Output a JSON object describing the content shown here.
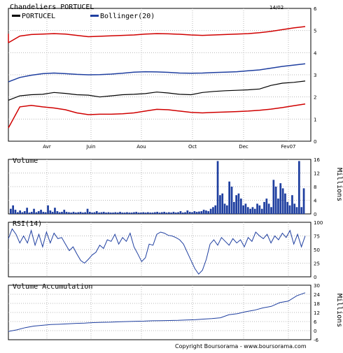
{
  "colors": {
    "price": "#000000",
    "bollinger_mid": "#1f3fa0",
    "bollinger_band": "#d00000",
    "volume": "#1f3fa0",
    "rsi": "#1f3fa0",
    "accum": "#1f3fa0",
    "grid": "#b8b8b8"
  },
  "chart_data": [
    {
      "type": "line",
      "title": "Chandeliers  PORTUCEL",
      "date_label": "14/02",
      "legend": [
        "PORTUCEL",
        "Bollinger(20)"
      ],
      "x_ticks": [
        "Avr",
        "Juin",
        "Aou",
        "Oct",
        "Dec",
        "Fev07"
      ],
      "ylim": [
        0,
        6
      ],
      "y_ticks": [
        "0",
        "1",
        "2",
        "3",
        "4",
        "5",
        "6"
      ],
      "series": [
        {
          "name": "PORTUCEL",
          "values": [
            1.85,
            2.05,
            2.1,
            2.12,
            2.2,
            2.16,
            2.1,
            2.08,
            2.0,
            2.05,
            2.1,
            2.12,
            2.15,
            2.22,
            2.18,
            2.12,
            2.1,
            2.2,
            2.25,
            2.28,
            2.3,
            2.32,
            2.36,
            2.52,
            2.62,
            2.66,
            2.72
          ]
        },
        {
          "name": "Bollinger(20)",
          "values": [
            2.68,
            2.88,
            2.98,
            3.05,
            3.08,
            3.05,
            3.02,
            3.0,
            3.01,
            3.03,
            3.07,
            3.12,
            3.14,
            3.13,
            3.11,
            3.08,
            3.07,
            3.08,
            3.1,
            3.12,
            3.14,
            3.18,
            3.22,
            3.3,
            3.38,
            3.44,
            3.5
          ]
        },
        {
          "values": [
            4.45,
            4.75,
            4.82,
            4.84,
            4.86,
            4.84,
            4.78,
            4.72,
            4.74,
            4.76,
            4.78,
            4.8,
            4.84,
            4.86,
            4.85,
            4.83,
            4.8,
            4.78,
            4.8,
            4.82,
            4.84,
            4.86,
            4.9,
            4.96,
            5.04,
            5.12,
            5.18
          ]
        },
        {
          "values": [
            0.6,
            1.55,
            1.62,
            1.55,
            1.5,
            1.42,
            1.28,
            1.2,
            1.22,
            1.22,
            1.24,
            1.28,
            1.36,
            1.44,
            1.42,
            1.36,
            1.3,
            1.28,
            1.3,
            1.32,
            1.34,
            1.36,
            1.4,
            1.45,
            1.52,
            1.6,
            1.68
          ]
        }
      ]
    },
    {
      "type": "bar",
      "title": "Volume",
      "ylabel": "Millions",
      "ylim": [
        0,
        16
      ],
      "y_ticks": [
        "0",
        "4",
        "8",
        "12",
        "16"
      ],
      "values": [
        1.5,
        2.5,
        1.2,
        0.5,
        1,
        0.5,
        0.8,
        1.8,
        0.4,
        0.6,
        1.5,
        0.5,
        0.8,
        1.2,
        0.6,
        0.5,
        2.5,
        1,
        0.6,
        1.8,
        0.8,
        0.5,
        0.6,
        1.2,
        0.6,
        0.5,
        0.4,
        0.6,
        0.4,
        0.5,
        0.6,
        0.4,
        0.5,
        1.5,
        0.6,
        0.4,
        0.5,
        0.8,
        0.4,
        0.5,
        0.6,
        0.4,
        0.5,
        0.4,
        0.4,
        0.5,
        0.4,
        0.6,
        0.4,
        0.4,
        0.5,
        0.4,
        0.4,
        0.5,
        0.6,
        0.4,
        0.4,
        0.5,
        0.4,
        0.5,
        0.4,
        0.4,
        0.5,
        0.6,
        0.4,
        0.5,
        0.6,
        0.4,
        0.5,
        0.4,
        0.6,
        0.4,
        0.5,
        0.8,
        0.4,
        0.5,
        1.0,
        0.6,
        0.5,
        0.8,
        0.6,
        0.7,
        0.8,
        1.2,
        1.0,
        0.8,
        1.5,
        2.0,
        2.5,
        15.5,
        5.5,
        6.0,
        3.0,
        2.5,
        9.5,
        8.0,
        3.5,
        5.5,
        6.0,
        4.5,
        2.5,
        3.0,
        2.0,
        1.5,
        2.0,
        1.5,
        3.0,
        2.5,
        1.5,
        3.5,
        4.5,
        3.0,
        2.0,
        10.0,
        8.0,
        4.5,
        9.0,
        7.5,
        6.0,
        3.5,
        2.5,
        5.5,
        3.0,
        2.0,
        15.5,
        2.0,
        7.5
      ]
    },
    {
      "type": "line",
      "title": "RSI(14)",
      "ylim": [
        0,
        100
      ],
      "y_ticks": [
        "0",
        "25",
        "50",
        "75",
        "100"
      ],
      "values": [
        70,
        88,
        78,
        62,
        75,
        62,
        85,
        58,
        78,
        55,
        82,
        62,
        80,
        70,
        72,
        60,
        48,
        55,
        42,
        30,
        25,
        32,
        40,
        45,
        58,
        52,
        68,
        65,
        78,
        60,
        72,
        65,
        80,
        55,
        42,
        28,
        35,
        60,
        58,
        78,
        82,
        80,
        76,
        75,
        72,
        68,
        60,
        45,
        30,
        15,
        5,
        12,
        32,
        60,
        68,
        58,
        72,
        65,
        58,
        70,
        62,
        68,
        55,
        72,
        65,
        82,
        75,
        70,
        78,
        62,
        75,
        68,
        80,
        72,
        85,
        60,
        78,
        55,
        75
      ]
    },
    {
      "type": "line",
      "title": "Volume Accumulation",
      "ylabel": "Millions",
      "ylim": [
        -6,
        30
      ],
      "y_ticks": [
        "-6",
        "0",
        "6",
        "12",
        "18",
        "24",
        "30"
      ],
      "values": [
        -0.5,
        0.5,
        2.0,
        3.0,
        3.5,
        4.0,
        4.2,
        4.5,
        4.8,
        5.0,
        5.3,
        5.5,
        5.6,
        5.8,
        6.0,
        6.2,
        6.3,
        6.5,
        6.6,
        6.7,
        6.8,
        7.0,
        7.2,
        7.6,
        8.0,
        8.5,
        10.5,
        11.2,
        12.5,
        13.5,
        15.0,
        16.0,
        18.5,
        19.5,
        23.0,
        25.0
      ]
    }
  ],
  "footer": {
    "copyright": "Copyright Boursorama - www.boursorama.com"
  }
}
